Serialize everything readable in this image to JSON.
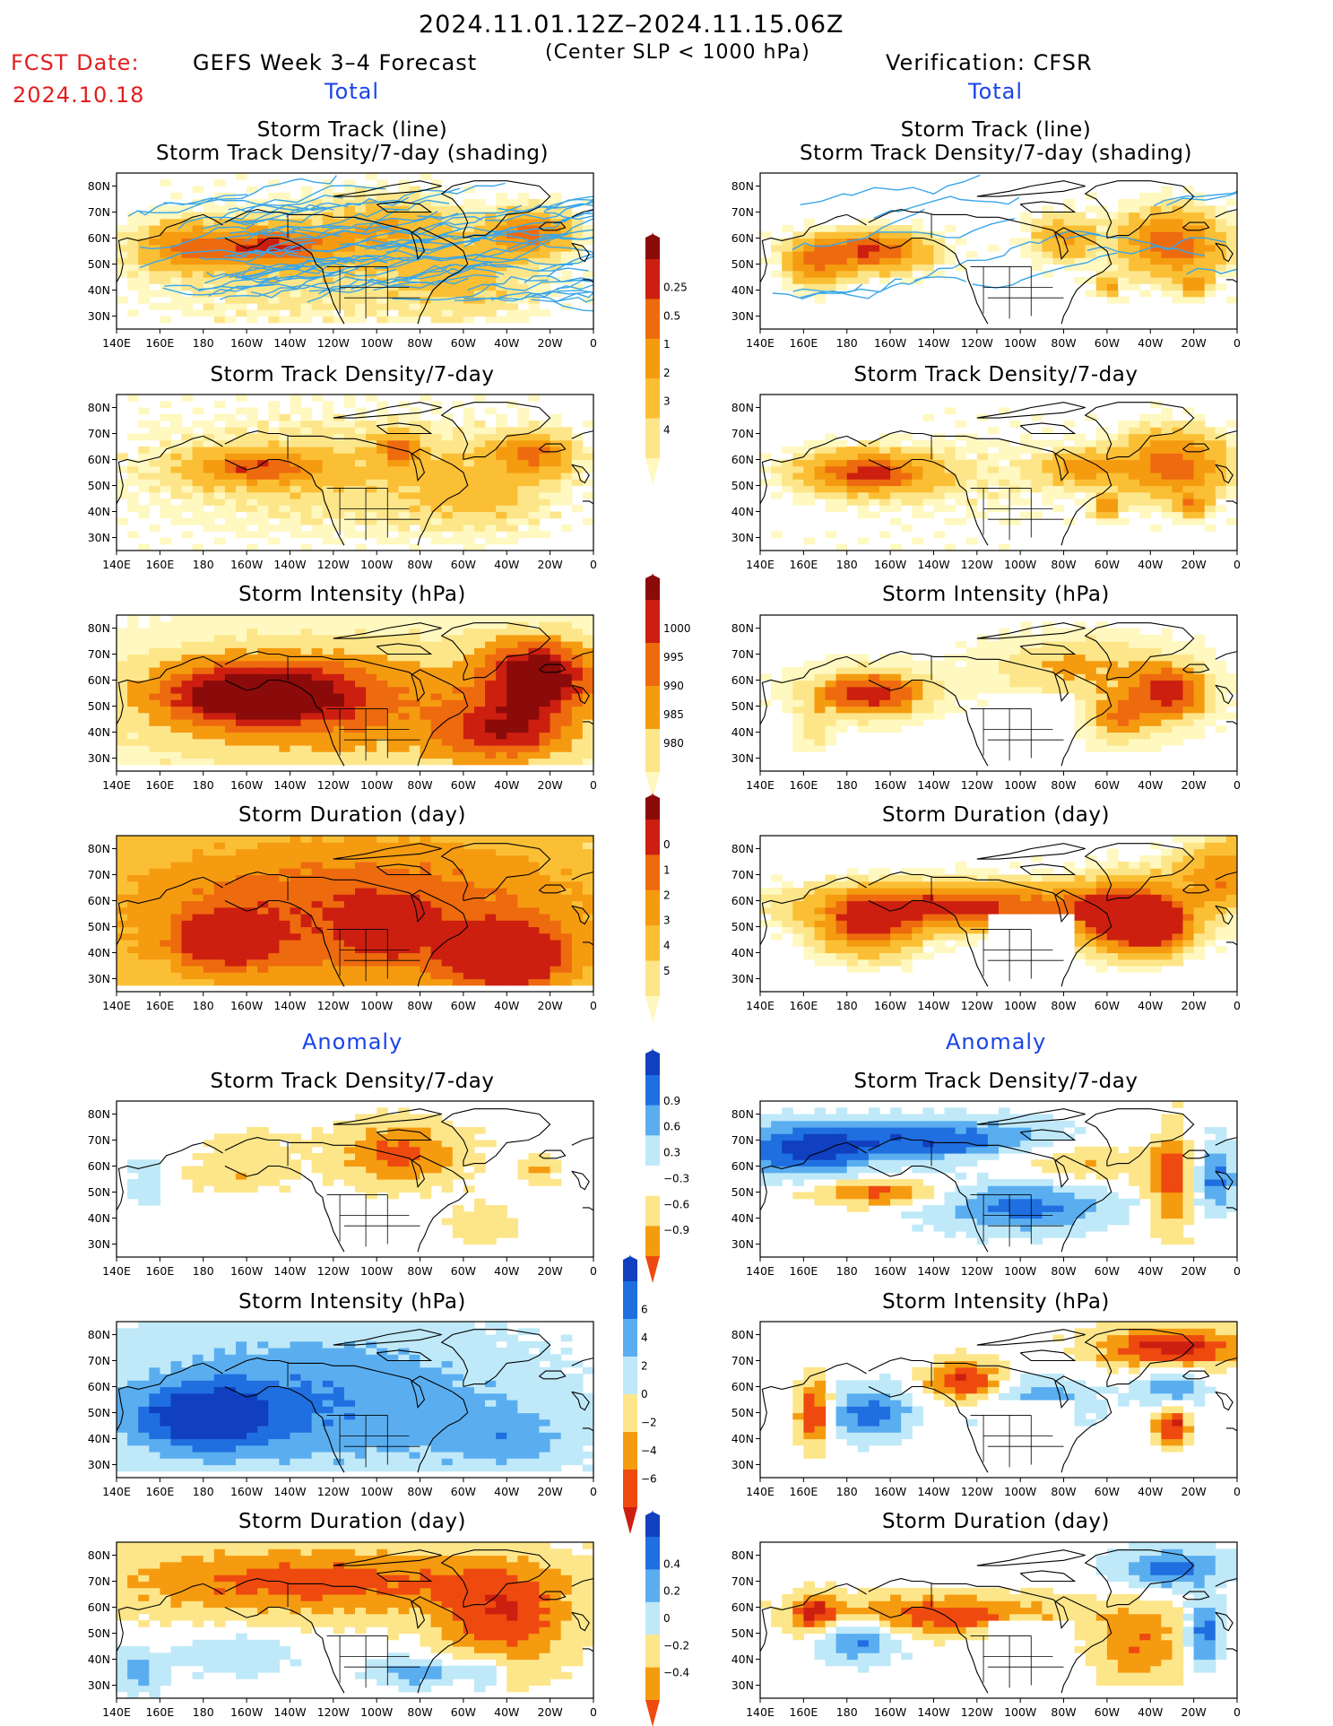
{
  "header": {
    "period": "2024.11.01.12Z–2024.11.15.06Z",
    "criterion": "(Center SLP < 1000 hPa)",
    "fcst_date_label": "FCST Date:",
    "fcst_date_value": "2024.10.18",
    "left_title": "GEFS Week 3–4 Forecast",
    "right_title": "Verification: CFSR"
  },
  "sections": {
    "total": "Total",
    "anomaly": "Anomaly"
  },
  "panel_titles": {
    "track_line": "Storm Track (line)",
    "track_shading": "Storm Track Density/7-day (shading)",
    "density": "Storm Track Density/7-day",
    "intensity": "Storm Intensity (hPa)",
    "duration": "Storm Duration (day)"
  },
  "map_axes": {
    "lon_labels": [
      "140E",
      "160E",
      "180",
      "160W",
      "140W",
      "120W",
      "100W",
      "80W",
      "60W",
      "40W",
      "20W",
      "0"
    ],
    "lat_labels": [
      "80N",
      "70N",
      "60N",
      "50N",
      "40N",
      "30N"
    ],
    "extent": {
      "lon": [
        140,
        360
      ],
      "lat": [
        25,
        85
      ]
    }
  },
  "colorbars": [
    {
      "name": "density-total-colorbar",
      "labels": [
        "0.25",
        "0.5",
        "1",
        "2",
        "3",
        "4"
      ],
      "colors": [
        "#fff8c0",
        "#fde68a",
        "#fbbf35",
        "#f59b10",
        "#ee6a0e",
        "#cc1f10",
        "#8b0a0a"
      ]
    },
    {
      "name": "intensity-total-colorbar",
      "labels": [
        "1000",
        "995",
        "990",
        "985",
        "980"
      ],
      "colors": [
        "#fff8c0",
        "#fde68a",
        "#f59b10",
        "#ee6a0e",
        "#cc1f10",
        "#8b0a0a"
      ]
    },
    {
      "name": "duration-total-colorbar",
      "labels": [
        "0",
        "1",
        "2",
        "3",
        "4",
        "5"
      ],
      "colors": [
        "#fff8c0",
        "#fde68a",
        "#fbbf35",
        "#f59b10",
        "#ee6a0e",
        "#cc1f10",
        "#8b0a0a"
      ]
    },
    {
      "name": "density-anomaly-colorbar",
      "labels": [
        "0.9",
        "0.6",
        "0.3",
        "−0.3",
        "−0.6",
        "−0.9"
      ],
      "colors": [
        "#ee4a10",
        "#f59b10",
        "#fde68a",
        "#ffffff",
        "#bfe9f9",
        "#5aaef0",
        "#1f6fe0",
        "#1040c0"
      ]
    },
    {
      "name": "intensity-anomaly-colorbar",
      "labels": [
        "6",
        "4",
        "2",
        "0",
        "−2",
        "−4",
        "−6"
      ],
      "colors": [
        "#cc1f10",
        "#ee4a10",
        "#f59b10",
        "#fde68a",
        "#bfe9f9",
        "#5aaef0",
        "#1f6fe0",
        "#1040c0"
      ]
    },
    {
      "name": "duration-anomaly-colorbar",
      "labels": [
        "0.4",
        "0.2",
        "0",
        "−0.2",
        "−0.4"
      ],
      "colors": [
        "#ee4a10",
        "#f59b10",
        "#fde68a",
        "#bfe9f9",
        "#5aaef0",
        "#1f6fe0",
        "#1040c0"
      ]
    }
  ],
  "panels": [
    {
      "id": "fcst-track",
      "column": "GEFS",
      "title_keys": [
        "track_line",
        "track_shading"
      ],
      "kind": "density",
      "track_lines": "many"
    },
    {
      "id": "obs-track",
      "column": "CFSR",
      "title_keys": [
        "track_line",
        "track_shading"
      ],
      "kind": "density",
      "track_lines": "few"
    },
    {
      "id": "fcst-density",
      "column": "GEFS",
      "title_keys": [
        "density"
      ],
      "kind": "density"
    },
    {
      "id": "obs-density",
      "column": "CFSR",
      "title_keys": [
        "density"
      ],
      "kind": "density"
    },
    {
      "id": "fcst-intensity",
      "column": "GEFS",
      "title_keys": [
        "intensity"
      ],
      "kind": "intensity"
    },
    {
      "id": "obs-intensity",
      "column": "CFSR",
      "title_keys": [
        "intensity"
      ],
      "kind": "intensity"
    },
    {
      "id": "fcst-duration",
      "column": "GEFS",
      "title_keys": [
        "duration"
      ],
      "kind": "duration"
    },
    {
      "id": "obs-duration",
      "column": "CFSR",
      "title_keys": [
        "duration"
      ],
      "kind": "duration"
    },
    {
      "id": "fcst-density-anom",
      "column": "GEFS",
      "title_keys": [
        "density"
      ],
      "kind": "anom-density"
    },
    {
      "id": "obs-density-anom",
      "column": "CFSR",
      "title_keys": [
        "density"
      ],
      "kind": "anom-density"
    },
    {
      "id": "fcst-intensity-anom",
      "column": "GEFS",
      "title_keys": [
        "intensity"
      ],
      "kind": "anom-intensity"
    },
    {
      "id": "obs-intensity-anom",
      "column": "CFSR",
      "title_keys": [
        "intensity"
      ],
      "kind": "anom-intensity"
    },
    {
      "id": "fcst-duration-anom",
      "column": "GEFS",
      "title_keys": [
        "duration"
      ],
      "kind": "anom-duration"
    },
    {
      "id": "obs-duration-anom",
      "column": "CFSR",
      "title_keys": [
        "duration"
      ],
      "kind": "anom-duration"
    }
  ]
}
